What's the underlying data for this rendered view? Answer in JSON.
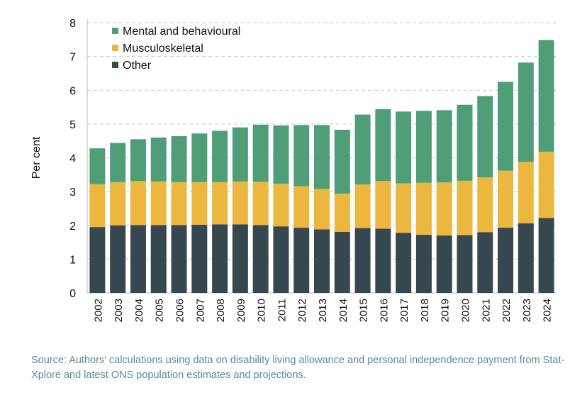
{
  "chart_data": {
    "type": "bar",
    "stacked": true,
    "title": "",
    "xlabel": "",
    "ylabel": "Per cent",
    "ylim": [
      0,
      8
    ],
    "yticks": [
      0,
      1,
      2,
      3,
      4,
      5,
      6,
      7,
      8
    ],
    "grid": "horizontal dashed",
    "legend_position": "top-left",
    "categories": [
      "2002",
      "2003",
      "2004",
      "2005",
      "2006",
      "2007",
      "2008",
      "2009",
      "2010",
      "2011",
      "2012",
      "2013",
      "2014",
      "2015",
      "2016",
      "2017",
      "2018",
      "2019",
      "2020",
      "2021",
      "2022",
      "2023",
      "2024"
    ],
    "series": [
      {
        "name": "Other",
        "color": "#37474f",
        "values": [
          1.95,
          2.0,
          2.01,
          2.01,
          2.01,
          2.02,
          2.03,
          2.03,
          2.01,
          1.97,
          1.93,
          1.88,
          1.81,
          1.92,
          1.9,
          1.78,
          1.72,
          1.7,
          1.71,
          1.8,
          1.93,
          2.06,
          2.22
        ]
      },
      {
        "name": "Musculoskeletal",
        "color": "#ebb73e",
        "values": [
          1.27,
          1.28,
          1.3,
          1.29,
          1.27,
          1.26,
          1.25,
          1.27,
          1.28,
          1.26,
          1.23,
          1.2,
          1.13,
          1.29,
          1.41,
          1.46,
          1.54,
          1.57,
          1.61,
          1.62,
          1.69,
          1.82,
          1.96
        ]
      },
      {
        "name": "Mental and behavioural",
        "color": "#4f9e78",
        "values": [
          1.06,
          1.16,
          1.24,
          1.3,
          1.36,
          1.44,
          1.52,
          1.6,
          1.69,
          1.73,
          1.81,
          1.89,
          1.89,
          2.07,
          2.13,
          2.13,
          2.13,
          2.14,
          2.25,
          2.41,
          2.63,
          2.94,
          3.31
        ]
      }
    ],
    "legend_order": [
      "Mental and behavioural",
      "Musculoskeletal",
      "Other"
    ]
  },
  "source_note": "Source: Authors’ calculations using data on disability living allowance and personal independence payment from Stat-Xplore and latest ONS population estimates and projections."
}
